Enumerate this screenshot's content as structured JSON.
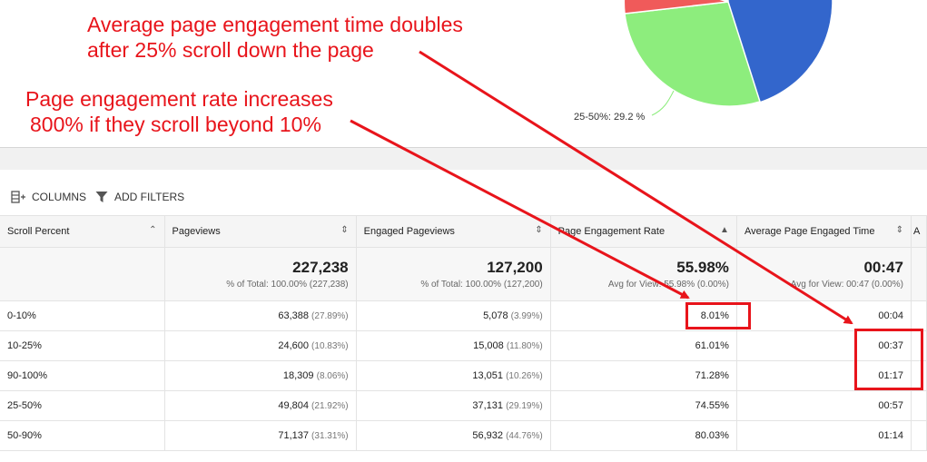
{
  "annotations": {
    "note1_line1": "Average page engagement time doubles",
    "note1_line2": "after 25% scroll down the page",
    "note2_line1": "Page engagement rate increases",
    "note2_line2": "800% if they scroll beyond 10%"
  },
  "pie": {
    "label": "25-50%: 29.2 %",
    "colors": {
      "blue": "#3366cc",
      "green": "#8ded7d",
      "red": "#f05a5a"
    }
  },
  "toolbar": {
    "columns_label": "COLUMNS",
    "filters_label": "ADD FILTERS",
    "columns_icon": "columns-icon",
    "filter_icon": "filter-icon"
  },
  "table": {
    "headers": {
      "scroll": "Scroll Percent",
      "pageviews": "Pageviews",
      "engaged": "Engaged Pageviews",
      "rate": "Page Engagement Rate",
      "time": "Average Page Engaged Time",
      "extra": "A"
    },
    "totals": {
      "pageviews": "227,238",
      "pageviews_sub": "% of Total: 100.00% (227,238)",
      "engaged": "127,200",
      "engaged_sub": "% of Total: 100.00% (127,200)",
      "rate": "55.98%",
      "rate_sub": "Avg for View: 55.98% (0.00%)",
      "time": "00:47",
      "time_sub": "Avg for View: 00:47 (0.00%)"
    },
    "rows": [
      {
        "scroll": "0-10%",
        "pageviews": "63,388",
        "pageviews_pct": "(27.89%)",
        "engaged": "5,078",
        "engaged_pct": "(3.99%)",
        "rate": "8.01%",
        "time": "00:04"
      },
      {
        "scroll": "10-25%",
        "pageviews": "24,600",
        "pageviews_pct": "(10.83%)",
        "engaged": "15,008",
        "engaged_pct": "(11.80%)",
        "rate": "61.01%",
        "time": "00:37"
      },
      {
        "scroll": "90-100%",
        "pageviews": "18,309",
        "pageviews_pct": "(8.06%)",
        "engaged": "13,051",
        "engaged_pct": "(10.26%)",
        "rate": "71.28%",
        "time": "01:17"
      },
      {
        "scroll": "25-50%",
        "pageviews": "49,804",
        "pageviews_pct": "(21.92%)",
        "engaged": "37,131",
        "engaged_pct": "(29.19%)",
        "rate": "74.55%",
        "time": "00:57"
      },
      {
        "scroll": "50-90%",
        "pageviews": "71,137",
        "pageviews_pct": "(31.31%)",
        "engaged": "56,932",
        "engaged_pct": "(44.76%)",
        "rate": "80.03%",
        "time": "01:14"
      }
    ]
  },
  "accent_red": "#e8141b"
}
